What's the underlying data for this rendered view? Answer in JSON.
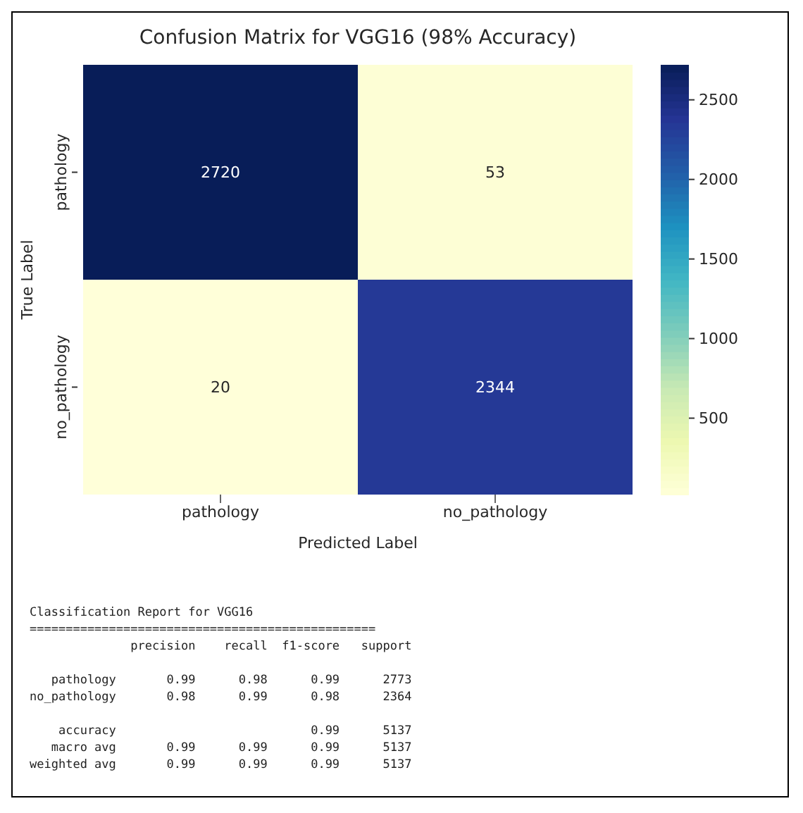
{
  "chart_data": {
    "type": "heatmap",
    "title": "Confusion Matrix for VGG16 (98% Accuracy)",
    "xlabel": "Predicted Label",
    "ylabel": "True Label",
    "categories": [
      "pathology",
      "no_pathology"
    ],
    "y_categories": [
      "pathology",
      "no_pathology"
    ],
    "cells": [
      [
        2720,
        53
      ],
      [
        20,
        2344
      ]
    ],
    "data_labels": true,
    "clim": [
      20,
      2720
    ],
    "cticks": [
      500,
      1000,
      1500,
      2000,
      2500
    ],
    "annotations": [
      "Classification Report for VGG16",
      "================================================",
      "              precision    recall  f1-score   support",
      "   pathology       0.99      0.98      0.99      2773",
      "no_pathology       0.98      0.99      0.98      2364",
      "    accuracy                           0.99      5137",
      "   macro avg       0.99      0.99      0.99      5137",
      "weighted avg       0.99      0.99      0.99      5137"
    ]
  }
}
